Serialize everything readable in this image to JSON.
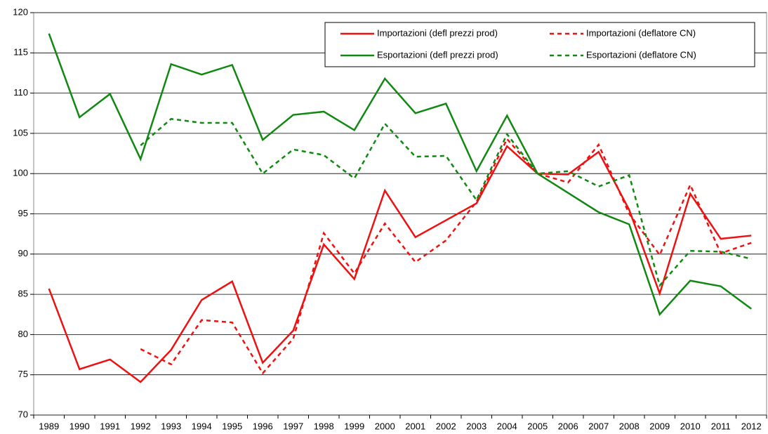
{
  "chart_data": {
    "type": "line",
    "categories": [
      "1989",
      "1990",
      "1991",
      "1992",
      "1993",
      "1994",
      "1995",
      "1996",
      "1997",
      "1998",
      "1999",
      "2000",
      "2001",
      "2002",
      "2003",
      "2004",
      "2005",
      "2006",
      "2007",
      "2008",
      "2009",
      "2010",
      "2011",
      "2012"
    ],
    "series": [
      {
        "name": "Importazioni (defl prezzi prod)",
        "color": "#ee1111",
        "dashed": false,
        "values": [
          85.7,
          75.7,
          76.9,
          74.1,
          78.1,
          84.3,
          86.6,
          76.5,
          80.5,
          91.2,
          86.9,
          97.9,
          92.1,
          94.2,
          96.3,
          103.4,
          100.0,
          99.9,
          102.7,
          95.5,
          85.1,
          97.5,
          91.9,
          92.3
        ]
      },
      {
        "name": "Importazioni (deflatore CN)",
        "color": "#ee1111",
        "dashed": true,
        "values": [
          null,
          null,
          null,
          78.2,
          76.3,
          81.8,
          81.5,
          75.2,
          79.5,
          92.6,
          87.6,
          93.8,
          89.0,
          91.7,
          96.5,
          104.3,
          100.0,
          98.9,
          103.6,
          95.0,
          89.9,
          98.6,
          90.1,
          91.4
        ]
      },
      {
        "name": "Esportazioni (defl prezzi prod)",
        "color": "#118811",
        "dashed": false,
        "values": [
          117.4,
          107.0,
          109.9,
          101.8,
          113.6,
          112.3,
          113.5,
          104.2,
          107.3,
          107.7,
          105.4,
          111.8,
          107.5,
          108.7,
          100.3,
          107.2,
          100.0,
          97.6,
          95.2,
          93.7,
          82.5,
          86.7,
          86.0,
          83.2
        ]
      },
      {
        "name": "Esportazioni (deflatore CN)",
        "color": "#118811",
        "dashed": true,
        "values": [
          null,
          null,
          null,
          103.5,
          106.8,
          106.3,
          106.3,
          100.0,
          103.0,
          102.3,
          99.4,
          106.2,
          102.1,
          102.2,
          96.7,
          104.9,
          100.0,
          100.3,
          98.4,
          99.8,
          86.1,
          90.4,
          90.3,
          89.4
        ]
      }
    ],
    "ylim": [
      70,
      120
    ],
    "yticks": [
      70,
      75,
      80,
      85,
      90,
      95,
      100,
      105,
      110,
      115,
      120
    ],
    "grid": true,
    "legend": "top-right"
  }
}
